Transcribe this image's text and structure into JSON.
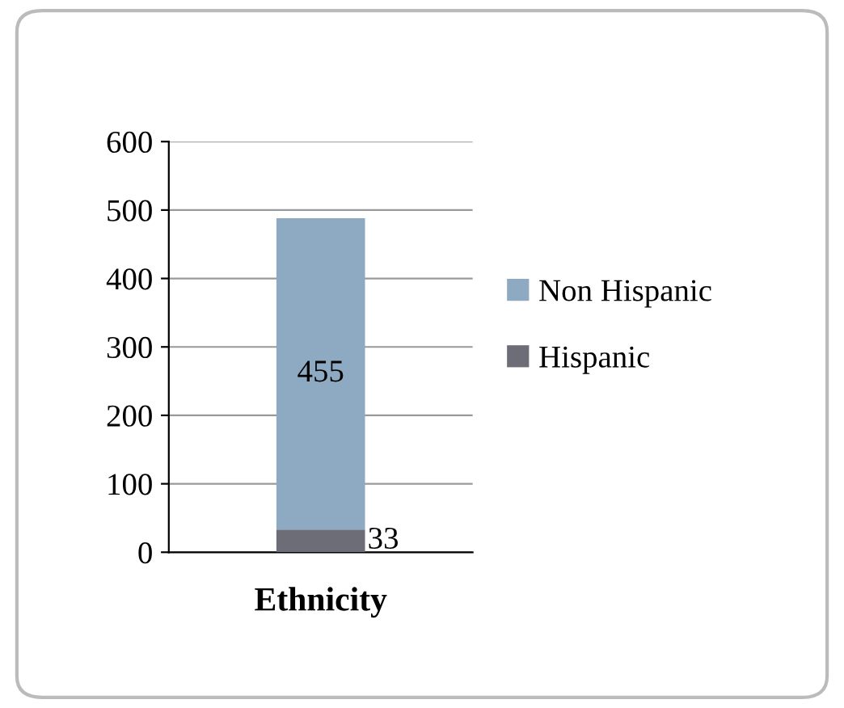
{
  "chart_data": {
    "type": "bar",
    "stacked": true,
    "xlabel": "Ethnicity",
    "categories": [
      null
    ],
    "series": [
      {
        "name": "Hispanic",
        "color": "#6d6d78",
        "values": [
          33
        ]
      },
      {
        "name": "Non Hispanic",
        "color": "#8eaac2",
        "values": [
          455
        ]
      }
    ],
    "ylim": [
      0,
      600
    ],
    "yticks": [
      0,
      100,
      200,
      300,
      400,
      500,
      600
    ],
    "grid": "y",
    "legend": "right",
    "data_labels": true
  }
}
